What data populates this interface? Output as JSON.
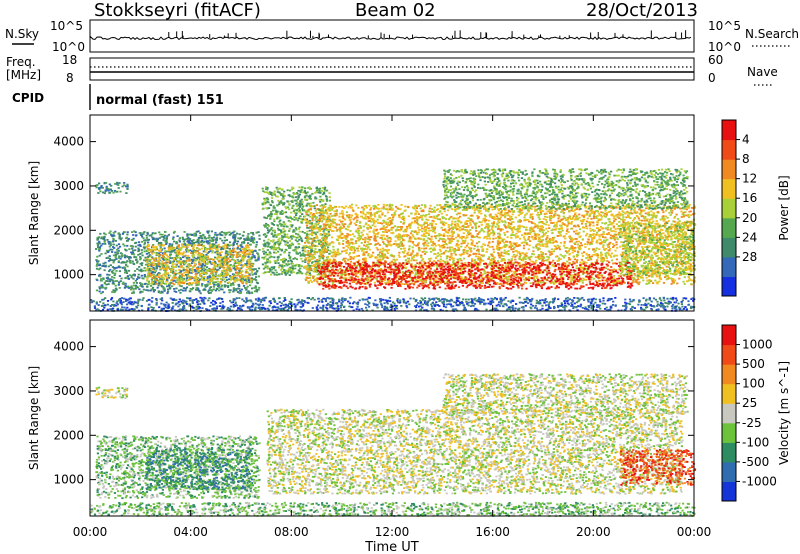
{
  "header": {
    "station": "Stokkseyri (fitACF)",
    "beam": "Beam 02",
    "date": "28/Oct/2013"
  },
  "panels": {
    "nsky_label": "N.Sky",
    "nsearch_label": "N.Search",
    "nsky_ticks": [
      "10^5",
      "10^0"
    ],
    "freq_label_top": "Freq.",
    "freq_label_unit": "[MHz]",
    "freq_ticks": [
      "18",
      "8"
    ],
    "nave_label": "Nave",
    "nave_ticks": [
      "60",
      "0"
    ],
    "cpid_label": "CPID",
    "cpid_text": "normal (fast) 151"
  },
  "chart_data": [
    {
      "type": "heatmap",
      "title": "",
      "xlabel": "Time UT",
      "ylabel": "Slant Range [km]",
      "xticks": [
        "00:00",
        "04:00",
        "08:00",
        "12:00",
        "16:00",
        "20:00",
        "00:00"
      ],
      "xlim": [
        0,
        24
      ],
      "ylim": [
        180,
        4600
      ],
      "yticks": [
        1000,
        2000,
        3000,
        4000
      ],
      "colorbar": {
        "label": "Power [dB]",
        "ticks": [
          "4",
          "8",
          "12",
          "16",
          "20",
          "24",
          "28"
        ],
        "colors": [
          "#1530e0",
          "#3468b8",
          "#3f8a6a",
          "#55a850",
          "#a8d038",
          "#f0c020",
          "#f08a20",
          "#f04a18",
          "#e81010"
        ]
      },
      "regions": [
        {
          "x0": 0.2,
          "x1": 1.5,
          "y0": 2850,
          "y1": 3100,
          "level": 2
        },
        {
          "x0": 0.2,
          "x1": 6.7,
          "y0": 600,
          "y1": 2000,
          "level": 2
        },
        {
          "x0": 2.2,
          "x1": 6.4,
          "y0": 800,
          "y1": 1700,
          "level": 5
        },
        {
          "x0": 0.0,
          "x1": 24.0,
          "y0": 200,
          "y1": 500,
          "level": 1
        },
        {
          "x0": 6.8,
          "x1": 9.5,
          "y0": 1000,
          "y1": 3000,
          "level": 3
        },
        {
          "x0": 8.5,
          "x1": 24.0,
          "y0": 800,
          "y1": 2600,
          "level": 5
        },
        {
          "x0": 9.0,
          "x1": 21.5,
          "y0": 700,
          "y1": 1300,
          "level": 8
        },
        {
          "x0": 14.0,
          "x1": 23.7,
          "y0": 2500,
          "y1": 3400,
          "level": 3
        },
        {
          "x0": 21.0,
          "x1": 24.0,
          "y0": 1000,
          "y1": 2200,
          "level": 4
        }
      ]
    },
    {
      "type": "heatmap",
      "title": "",
      "xlabel": "Time UT",
      "ylabel": "Slant Range [km]",
      "xticks": [
        "00:00",
        "04:00",
        "08:00",
        "12:00",
        "16:00",
        "20:00",
        "00:00"
      ],
      "xlim": [
        0,
        24
      ],
      "ylim": [
        180,
        4600
      ],
      "yticks": [
        1000,
        2000,
        3000,
        4000
      ],
      "colorbar": {
        "label": "Velocity [m s^-1]",
        "ticks": [
          "1000",
          "500",
          "100",
          "25",
          "-25",
          "-100",
          "-500",
          "-1000"
        ],
        "colors": [
          "#1535d8",
          "#2f6cb0",
          "#2e8c62",
          "#6cc23a",
          "#c8c8c0",
          "#f0c020",
          "#f08a20",
          "#f04a18",
          "#e81010"
        ]
      },
      "regions": [
        {
          "x0": 0.2,
          "x1": 1.5,
          "y0": 2850,
          "y1": 3100,
          "level": 4
        },
        {
          "x0": 0.2,
          "x1": 6.7,
          "y0": 600,
          "y1": 2000,
          "level": 3
        },
        {
          "x0": 2.2,
          "x1": 6.4,
          "y0": 800,
          "y1": 1700,
          "level": 2
        },
        {
          "x0": 7.0,
          "x1": 23.5,
          "y0": 700,
          "y1": 2600,
          "level": 4
        },
        {
          "x0": 14.0,
          "x1": 23.7,
          "y0": 2500,
          "y1": 3400,
          "level": 4
        },
        {
          "x0": 21.0,
          "x1": 24.0,
          "y0": 900,
          "y1": 1700,
          "level": 7
        },
        {
          "x0": 0.0,
          "x1": 24.0,
          "y0": 200,
          "y1": 500,
          "level": 3
        }
      ]
    }
  ]
}
